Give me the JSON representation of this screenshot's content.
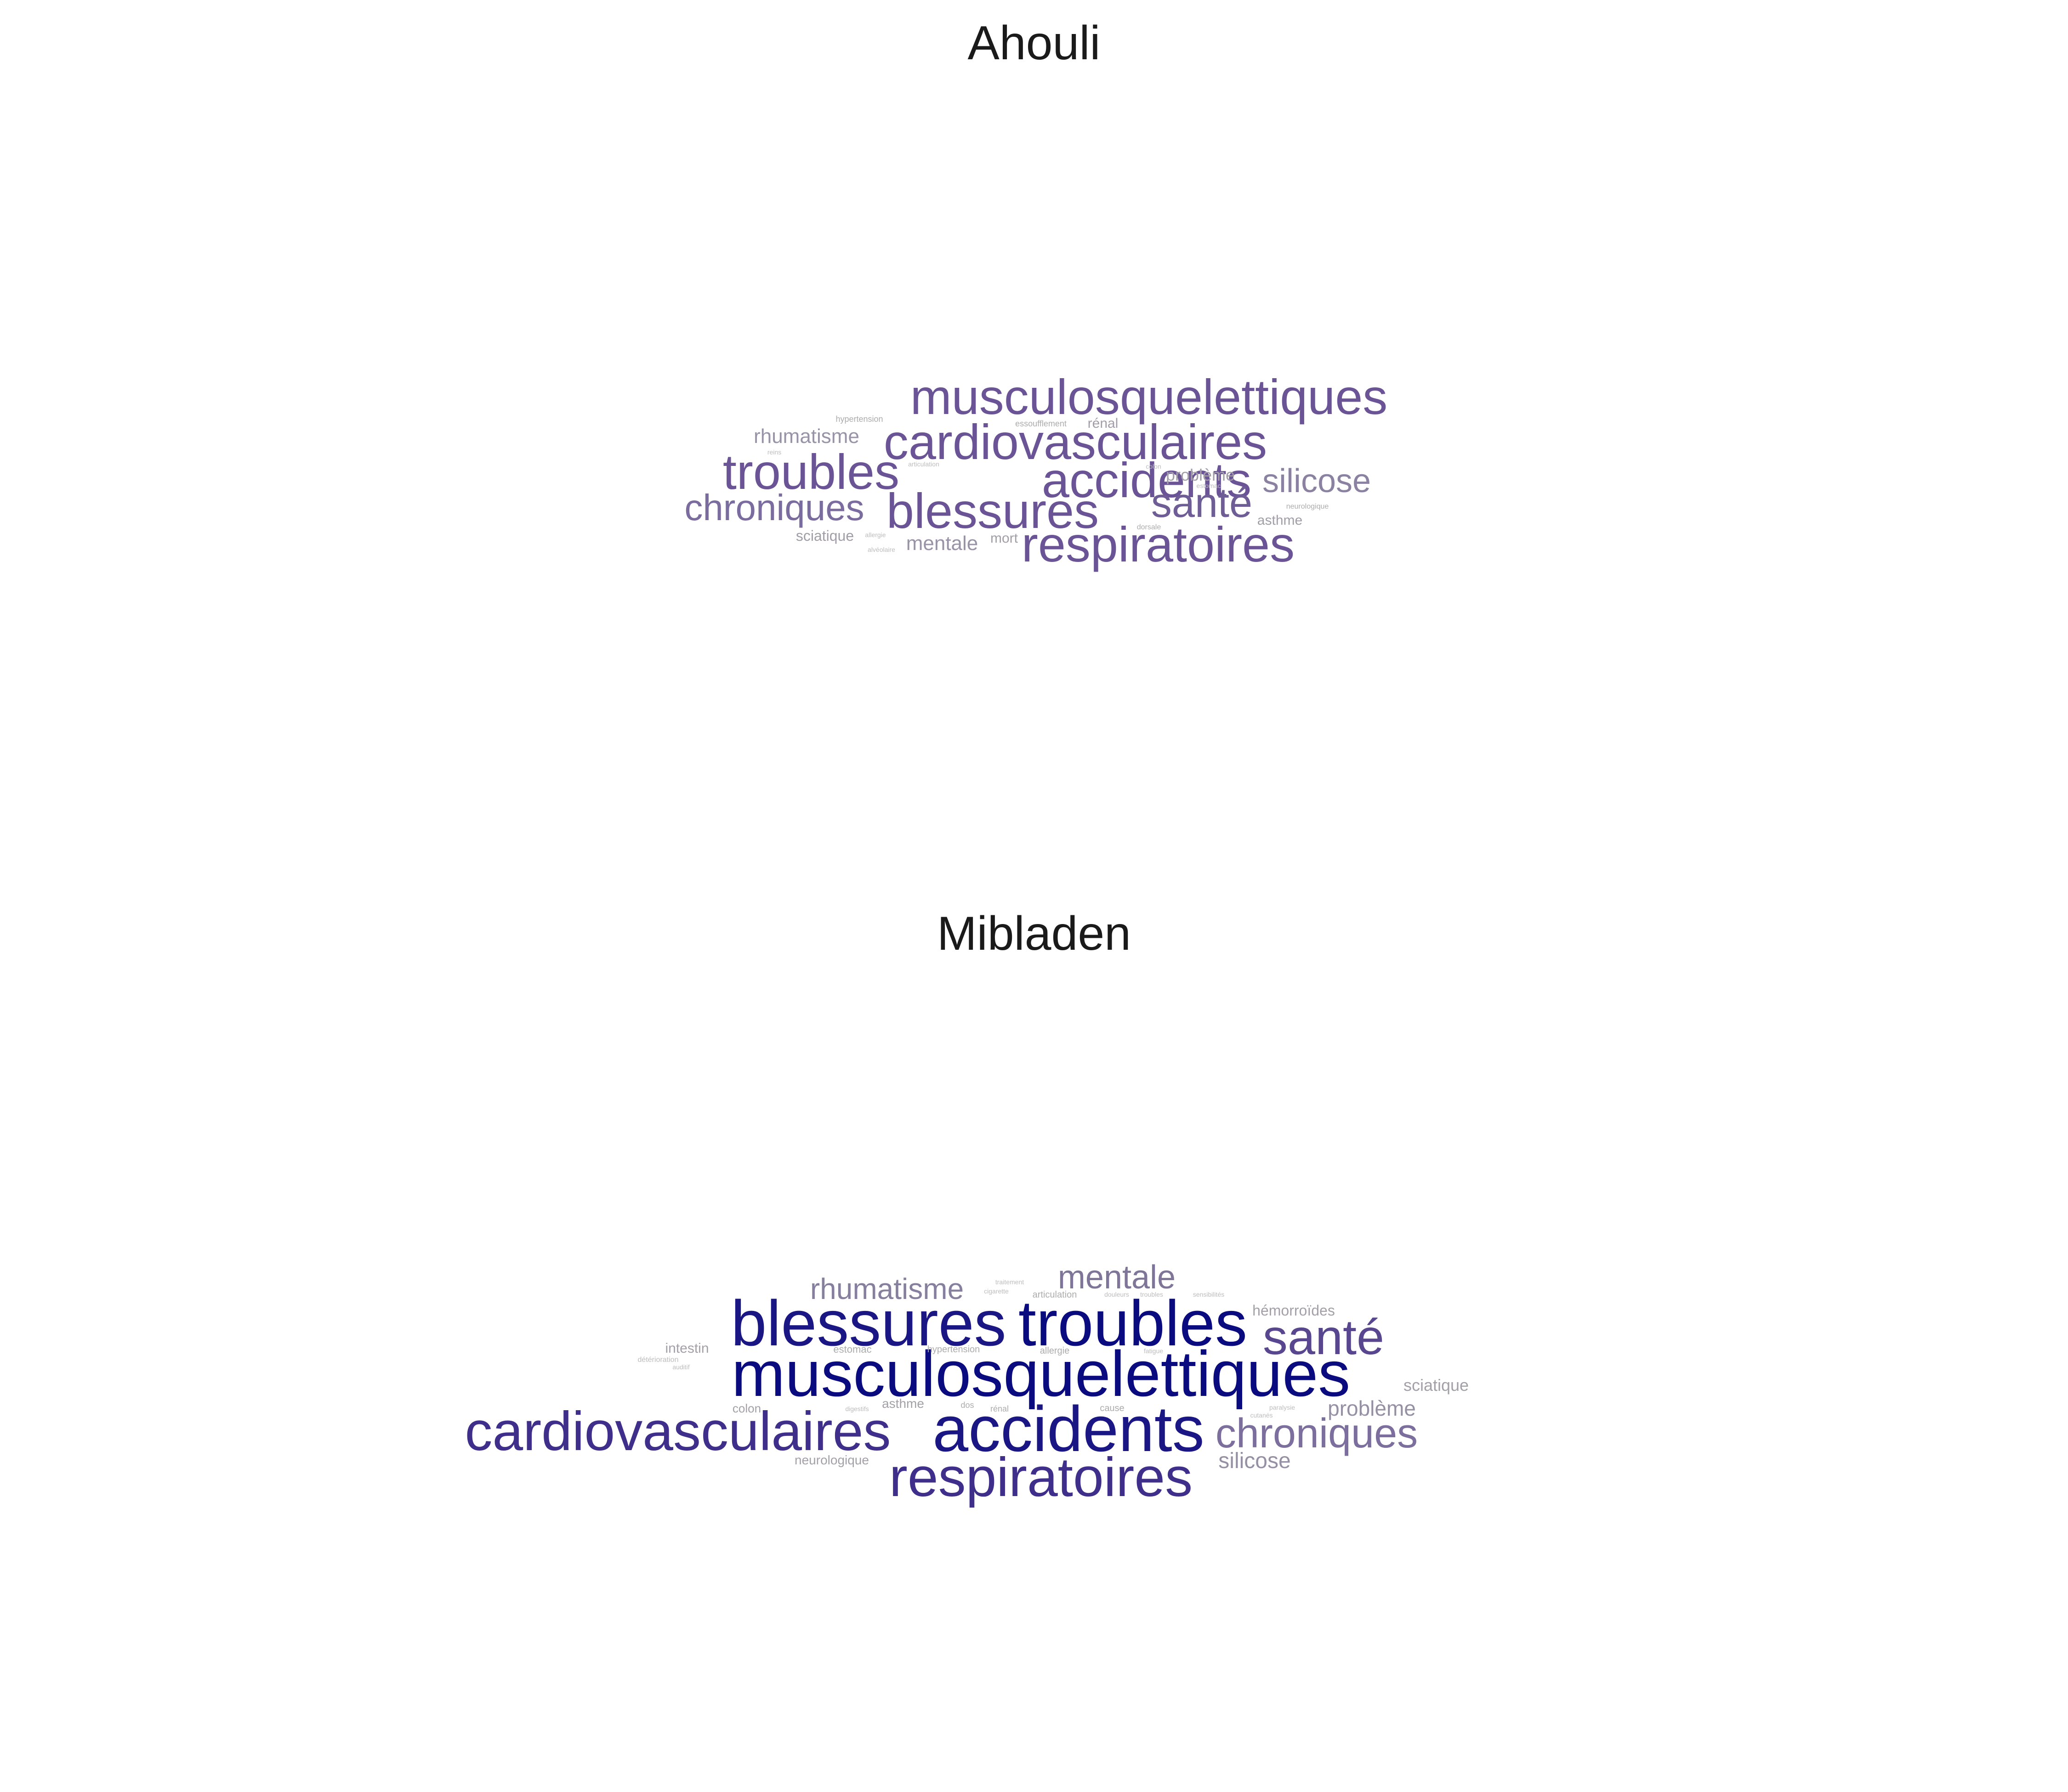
{
  "chart_data": [
    {
      "type": "wordcloud",
      "title": "Ahouli",
      "words": [
        {
          "text": "musculosquelettiques",
          "weight": 6,
          "color": "#6a5496"
        },
        {
          "text": "cardiovasculaires",
          "weight": 6,
          "color": "#6a5496"
        },
        {
          "text": "accidents",
          "weight": 6,
          "color": "#6a5496"
        },
        {
          "text": "respiratoires",
          "weight": 6,
          "color": "#6a5496"
        },
        {
          "text": "blessures",
          "weight": 6,
          "color": "#6a5496"
        },
        {
          "text": "troubles",
          "weight": 6,
          "color": "#6a5496"
        },
        {
          "text": "santé",
          "weight": 5,
          "color": "#6f5d96"
        },
        {
          "text": "chroniques",
          "weight": 5,
          "color": "#7a6c9e"
        },
        {
          "text": "silicose",
          "weight": 4,
          "color": "#8b82a2"
        },
        {
          "text": "rhumatisme",
          "weight": 3,
          "color": "#9893a6"
        },
        {
          "text": "mentale",
          "weight": 3,
          "color": "#9893a6"
        },
        {
          "text": "problème",
          "weight": 2,
          "color": "#a19ea7"
        },
        {
          "text": "sciatique",
          "weight": 2,
          "color": "#a19ea7"
        },
        {
          "text": "asthme",
          "weight": 2,
          "color": "#a19ea7"
        },
        {
          "text": "mort",
          "weight": 2,
          "color": "#a19ea7"
        },
        {
          "text": "rénal",
          "weight": 2,
          "color": "#a19ea7"
        },
        {
          "text": "essoufflement",
          "weight": 1,
          "color": "#acacac"
        },
        {
          "text": "hypertension",
          "weight": 1,
          "color": "#acacac"
        },
        {
          "text": "neurologique",
          "weight": 1,
          "color": "#acacac"
        },
        {
          "text": "dorsale",
          "weight": 1,
          "color": "#acacac"
        },
        {
          "text": "alvéolaire",
          "weight": 1,
          "color": "#bdbdbd"
        },
        {
          "text": "allergie",
          "weight": 1,
          "color": "#bdbdbd"
        },
        {
          "text": "articulation",
          "weight": 1,
          "color": "#bdbdbd"
        },
        {
          "text": "colon",
          "weight": 1,
          "color": "#bdbdbd"
        },
        {
          "text": "estomac",
          "weight": 1,
          "color": "#bdbdbd"
        },
        {
          "text": "reins",
          "weight": 1,
          "color": "#bdbdbd"
        }
      ]
    },
    {
      "type": "wordcloud",
      "title": "Mibladen",
      "words": [
        {
          "text": "musculosquelettiques",
          "weight": 10,
          "color": "#0b0b80"
        },
        {
          "text": "troubles",
          "weight": 9,
          "color": "#0b0b80"
        },
        {
          "text": "blessures",
          "weight": 9,
          "color": "#1a1784"
        },
        {
          "text": "accidents",
          "weight": 9,
          "color": "#1a1784"
        },
        {
          "text": "cardiovasculaires",
          "weight": 8,
          "color": "#3f2e8a"
        },
        {
          "text": "respiratoires",
          "weight": 8,
          "color": "#3f2e8a"
        },
        {
          "text": "santé",
          "weight": 7,
          "color": "#58468f"
        },
        {
          "text": "chroniques",
          "weight": 5,
          "color": "#7c6f9d"
        },
        {
          "text": "mentale",
          "weight": 4,
          "color": "#7f7599"
        },
        {
          "text": "rhumatisme",
          "weight": 4,
          "color": "#867f9e"
        },
        {
          "text": "problème",
          "weight": 3,
          "color": "#9590a3"
        },
        {
          "text": "silicose",
          "weight": 3,
          "color": "#9590a3"
        },
        {
          "text": "sciatique",
          "weight": 2,
          "color": "#a3a0a8"
        },
        {
          "text": "hémorroïdes",
          "weight": 2,
          "color": "#a3a0a8"
        },
        {
          "text": "intestin",
          "weight": 2,
          "color": "#a3a0a8"
        },
        {
          "text": "neurologique",
          "weight": 2,
          "color": "#a3a0a8"
        },
        {
          "text": "asthme",
          "weight": 2,
          "color": "#a3a0a8"
        },
        {
          "text": "colon",
          "weight": 2,
          "color": "#a3a0a8"
        },
        {
          "text": "estomac",
          "weight": 1,
          "color": "#acacac"
        },
        {
          "text": "hypertension",
          "weight": 1,
          "color": "#acacac"
        },
        {
          "text": "articulation",
          "weight": 1,
          "color": "#acacac"
        },
        {
          "text": "allergie",
          "weight": 1,
          "color": "#acacac"
        },
        {
          "text": "cause",
          "weight": 1,
          "color": "#acacac"
        },
        {
          "text": "dos",
          "weight": 1,
          "color": "#acacac"
        },
        {
          "text": "rénal",
          "weight": 1,
          "color": "#acacac"
        },
        {
          "text": "détérioration",
          "weight": 1,
          "color": "#bdbdbd"
        },
        {
          "text": "auditif",
          "weight": 1,
          "color": "#bdbdbd"
        },
        {
          "text": "sensibilités",
          "weight": 1,
          "color": "#bdbdbd"
        },
        {
          "text": "traitement",
          "weight": 1,
          "color": "#bdbdbd"
        },
        {
          "text": "cigarette",
          "weight": 1,
          "color": "#bdbdbd"
        },
        {
          "text": "digestifs",
          "weight": 1,
          "color": "#bdbdbd"
        },
        {
          "text": "douleurs",
          "weight": 1,
          "color": "#bdbdbd"
        },
        {
          "text": "troubles",
          "weight": 1,
          "color": "#bdbdbd"
        },
        {
          "text": "paralysie",
          "weight": 1,
          "color": "#bdbdbd"
        },
        {
          "text": "cutanés",
          "weight": 1,
          "color": "#bdbdbd"
        },
        {
          "text": "fatigue",
          "weight": 1,
          "color": "#bdbdbd"
        }
      ]
    }
  ]
}
